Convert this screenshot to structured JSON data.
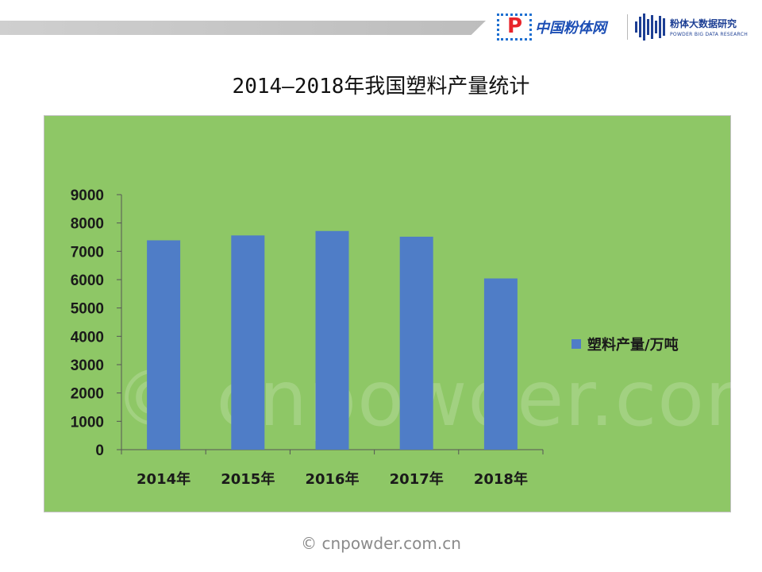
{
  "header": {
    "brand1": "中国粉体网",
    "brand2_main": "粉体大数据研究",
    "brand2_sub": "POWDER BIG DATA RESEARCH"
  },
  "page_title": "2014—2018年我国塑料产量统计",
  "watermark": "© cnpowder.com.cn",
  "footer": "© cnpowder.com.cn",
  "colors": {
    "background": "#8ec766",
    "bar": "#4f7dc7"
  },
  "chart_data": {
    "type": "bar",
    "categories": [
      "2014年",
      "2015年",
      "2016年",
      "2017年",
      "2018年"
    ],
    "series": [
      {
        "name": "塑料产量/万吨",
        "values": [
          7388,
          7561,
          7717,
          7516,
          6042
        ]
      }
    ],
    "ylim": [
      0,
      9000
    ],
    "yticks": [
      "0",
      "1000",
      "2000",
      "3000",
      "4000",
      "5000",
      "6000",
      "7000",
      "8000",
      "9000"
    ],
    "grid": false,
    "legend": "right"
  }
}
